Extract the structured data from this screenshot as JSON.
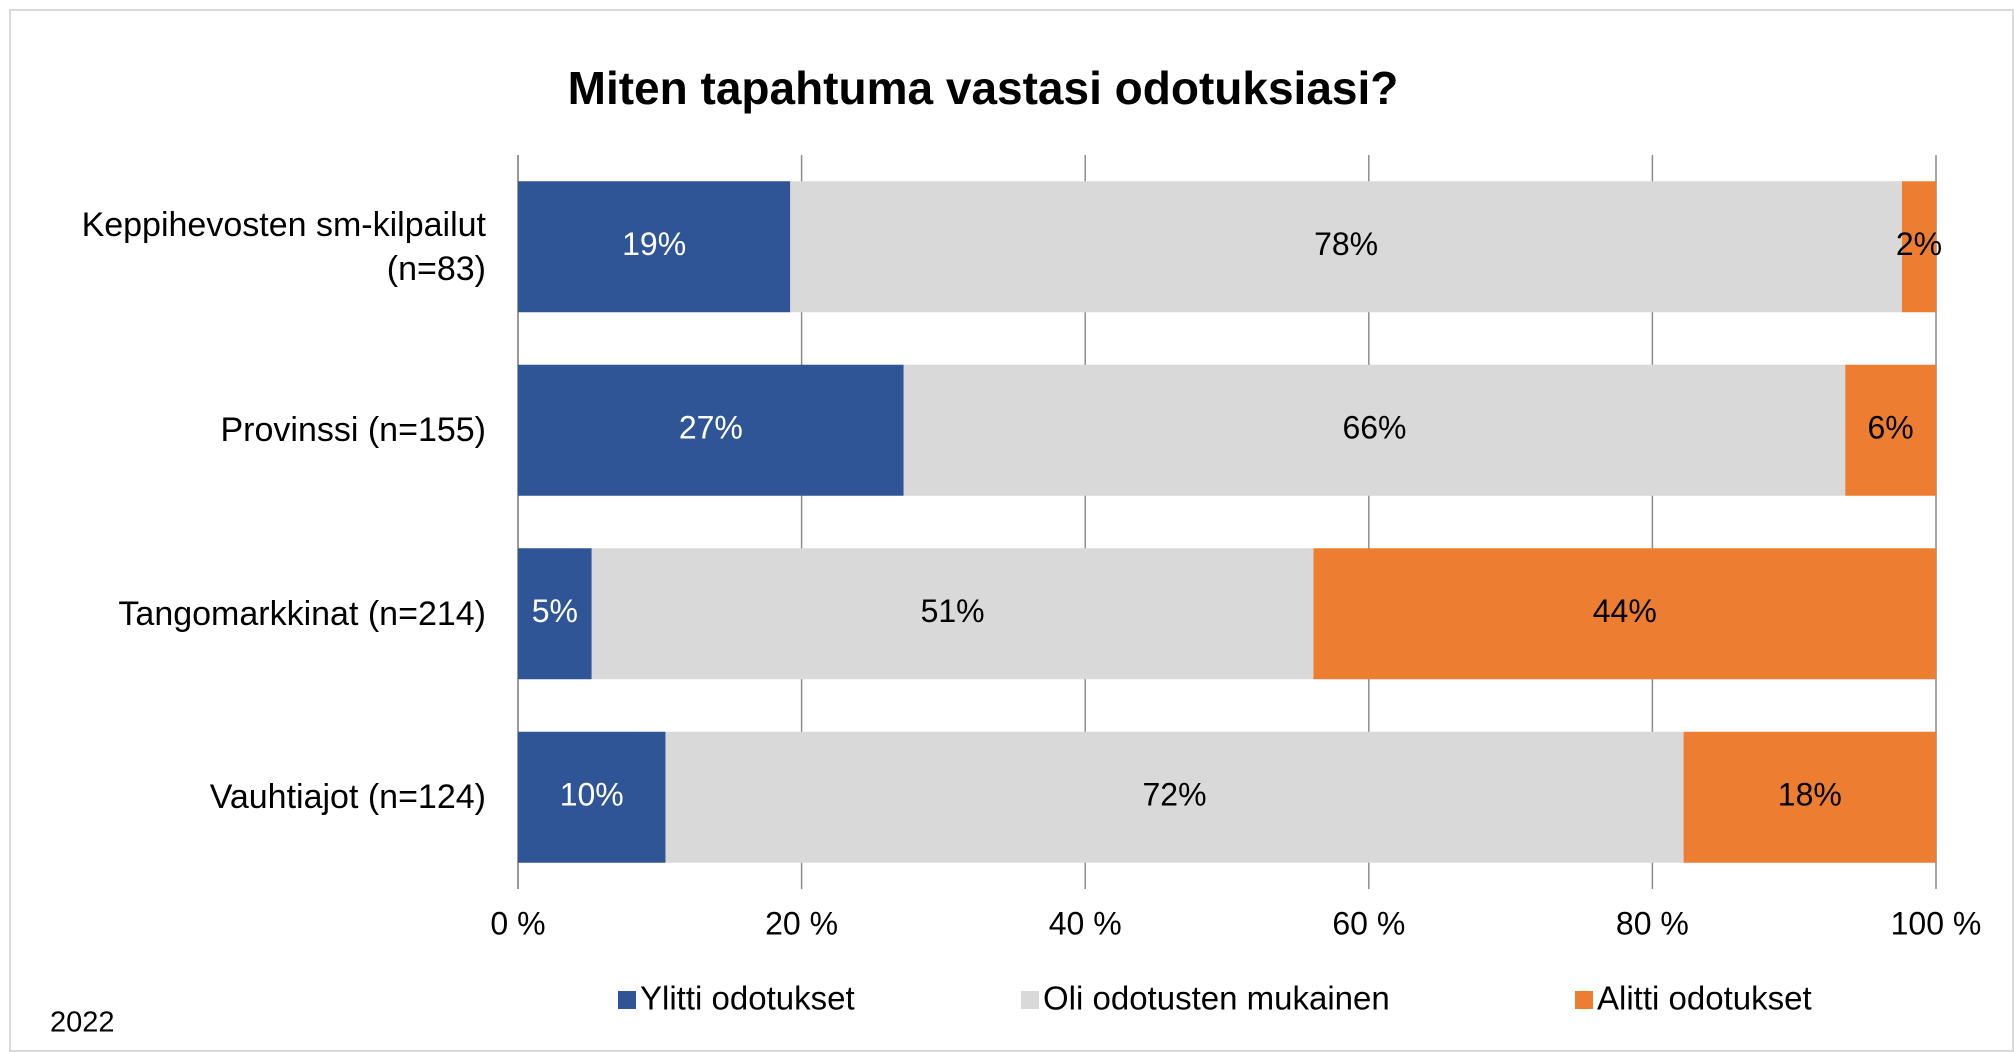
{
  "chart_data": {
    "type": "stacked_barh",
    "title": "Miten tapahtuma vastasi odotuksiasi?",
    "note": "2022",
    "categories": [
      "Keppihevosten sm-kilpailut (n=83)",
      "Provinssi (n=155)",
      "Tangomarkkinat (n=214)",
      "Vauhtiajot (n=124)"
    ],
    "series": [
      {
        "name": "Ylitti odotukset",
        "color": "#2f5597",
        "label_color": "#ffffff",
        "values": [
          19.2,
          27.2,
          5.2,
          10.4
        ],
        "value_labels": [
          "19%",
          "27%",
          "5%",
          "10%"
        ]
      },
      {
        "name": "Oli odotusten mukainen",
        "color": "#d9d9d9",
        "label_color": "#000000",
        "values": [
          78.4,
          66.4,
          50.9,
          71.8
        ],
        "value_labels": [
          "78%",
          "66%",
          "51%",
          "72%"
        ]
      },
      {
        "name": "Alitti odotukset",
        "color": "#ed7d31",
        "label_color": "#000000",
        "values": [
          2.4,
          6.4,
          43.9,
          17.8
        ],
        "value_labels": [
          "2%",
          "6%",
          "44%",
          "18%"
        ]
      }
    ],
    "xlim": [
      0,
      100
    ],
    "xticks": [
      {
        "value": 0,
        "label": "0 %"
      },
      {
        "value": 20,
        "label": "20 %"
      },
      {
        "value": 40,
        "label": "40 %"
      },
      {
        "value": 60,
        "label": "60 %"
      },
      {
        "value": 80,
        "label": "80 %"
      },
      {
        "value": 100,
        "label": "100 %"
      }
    ],
    "grid": true,
    "legend": "bottom"
  }
}
